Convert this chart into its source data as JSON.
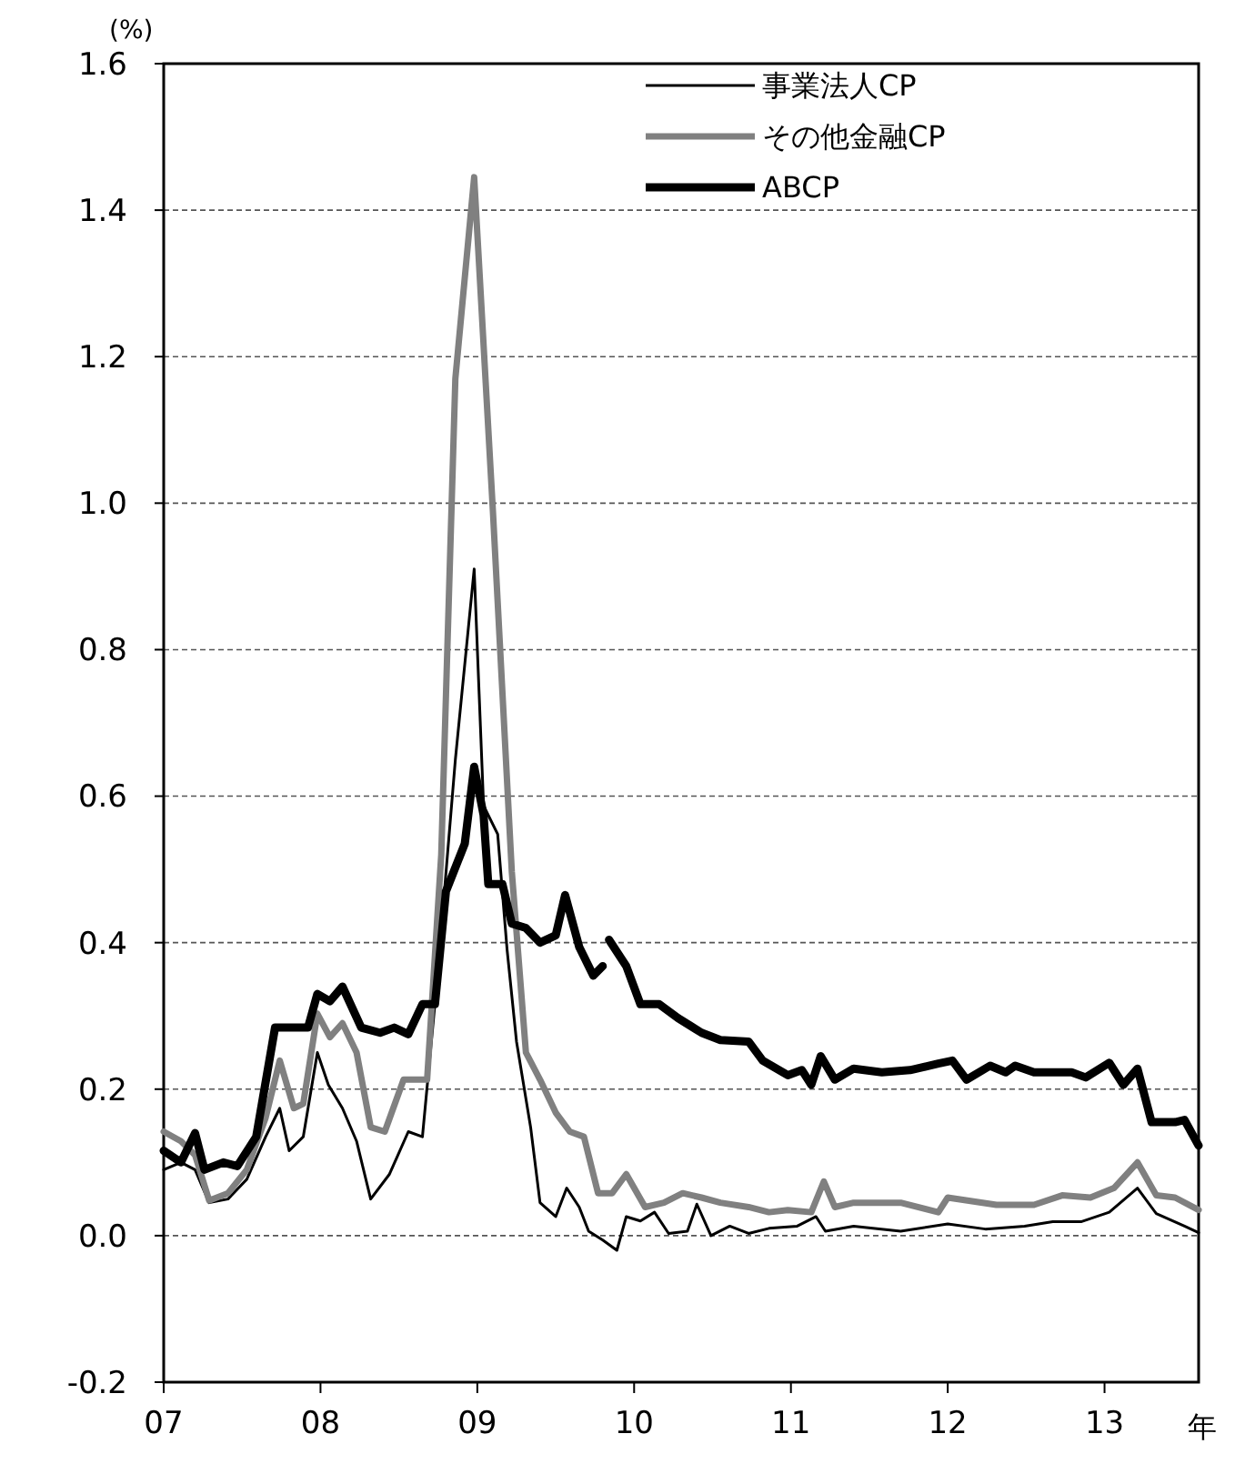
{
  "chart_data": {
    "type": "line",
    "ylabel": "(%)",
    "xlabel": "年",
    "xlim": [
      7,
      13.6
    ],
    "xticks": [
      {
        "value": 7,
        "label": "07"
      },
      {
        "value": 8,
        "label": "08"
      },
      {
        "value": 9,
        "label": "09"
      },
      {
        "value": 10,
        "label": "10"
      },
      {
        "value": 11,
        "label": "11"
      },
      {
        "value": 12,
        "label": "12"
      },
      {
        "value": 13,
        "label": "13"
      }
    ],
    "ylim": [
      -0.2,
      1.6
    ],
    "yticks": [
      {
        "value": -0.2,
        "label": "-0.2"
      },
      {
        "value": 0,
        "label": "0.0"
      },
      {
        "value": 0.2,
        "label": "0.2"
      },
      {
        "value": 0.4,
        "label": "0.4"
      },
      {
        "value": 0.6,
        "label": "0.6"
      },
      {
        "value": 0.8,
        "label": "0.8"
      },
      {
        "value": 1,
        "label": "1.0"
      },
      {
        "value": 1.2,
        "label": "1.2"
      },
      {
        "value": 1.4,
        "label": "1.4"
      },
      {
        "value": 1.6,
        "label": "1.6"
      }
    ],
    "grid": "y",
    "legend": "top right",
    "line_style": "solid",
    "marker": "none",
    "series": [
      {
        "name": "事業法人CP",
        "color": "#000000",
        "x": [
          7.0,
          7.11,
          7.2,
          7.29,
          7.41,
          7.53,
          7.65,
          7.74,
          7.8,
          7.89,
          7.98,
          8.05,
          8.14,
          8.23,
          8.32,
          8.44,
          8.56,
          8.65,
          8.74,
          8.86,
          8.98,
          9.04,
          9.13,
          9.19,
          9.25,
          9.34,
          9.4,
          9.5,
          9.57,
          9.65,
          9.71,
          9.8,
          9.89,
          9.95,
          10.04,
          10.13,
          10.22,
          10.34,
          10.4,
          10.49,
          10.61,
          10.73,
          10.86,
          11.04,
          11.16,
          11.22,
          11.4,
          11.7,
          12.0,
          12.24,
          12.49,
          12.67,
          12.85,
          13.03,
          13.21,
          13.33,
          13.51,
          13.6
        ],
        "values": [
          0.09,
          0.1,
          0.09,
          0.045,
          0.05,
          0.077,
          0.135,
          0.174,
          0.116,
          0.135,
          0.25,
          0.206,
          0.174,
          0.129,
          0.05,
          0.084,
          0.142,
          0.135,
          0.34,
          0.65,
          0.91,
          0.587,
          0.548,
          0.39,
          0.265,
          0.148,
          0.045,
          0.026,
          0.065,
          0.039,
          0.006,
          -0.006,
          -0.02,
          0.026,
          0.02,
          0.032,
          0.003,
          0.006,
          0.043,
          0.0,
          0.013,
          0.003,
          0.01,
          0.013,
          0.026,
          0.006,
          0.013,
          0.006,
          0.016,
          0.009,
          0.013,
          0.019,
          0.019,
          0.032,
          0.065,
          0.03,
          0.013,
          0.004
        ]
      },
      {
        "name": "その他金融CP",
        "color": "#808080",
        "x": [
          7.0,
          7.11,
          7.2,
          7.29,
          7.41,
          7.53,
          7.65,
          7.74,
          7.83,
          7.89,
          7.98,
          8.06,
          8.14,
          8.23,
          8.32,
          8.41,
          8.53,
          8.68,
          8.77,
          8.86,
          8.98,
          9.1,
          9.22,
          9.31,
          9.4,
          9.5,
          9.59,
          9.68,
          9.77,
          9.86,
          9.95,
          10.07,
          10.19,
          10.31,
          10.43,
          10.55,
          10.73,
          10.86,
          10.98,
          11.13,
          11.21,
          11.28,
          11.4,
          11.7,
          11.94,
          12.0,
          12.31,
          12.55,
          12.73,
          12.91,
          13.06,
          13.21,
          13.33,
          13.45,
          13.6
        ],
        "values": [
          0.142,
          0.129,
          0.11,
          0.048,
          0.058,
          0.09,
          0.161,
          0.239,
          0.174,
          0.18,
          0.303,
          0.271,
          0.29,
          0.25,
          0.148,
          0.142,
          0.213,
          0.213,
          0.52,
          1.17,
          1.445,
          0.987,
          0.497,
          0.25,
          0.213,
          0.168,
          0.142,
          0.135,
          0.058,
          0.058,
          0.084,
          0.039,
          0.045,
          0.058,
          0.052,
          0.045,
          0.039,
          0.032,
          0.035,
          0.032,
          0.074,
          0.039,
          0.045,
          0.045,
          0.032,
          0.052,
          0.042,
          0.042,
          0.055,
          0.052,
          0.065,
          0.1,
          0.055,
          0.052,
          0.035
        ]
      },
      {
        "name": "ABCP",
        "color": "#000000",
        "x": [
          7.0,
          7.11,
          7.2,
          7.26,
          7.38,
          7.47,
          7.59,
          7.71,
          7.83,
          7.92,
          7.98,
          8.06,
          8.14,
          8.26,
          8.38,
          8.47,
          8.56,
          8.65,
          8.73,
          8.8,
          8.92,
          8.98,
          9.04,
          9.07,
          9.16,
          9.22,
          9.31,
          9.4,
          9.5,
          9.56,
          9.65,
          9.74,
          9.8,
          9.82,
          9.84,
          9.95,
          10.04,
          10.16,
          10.28,
          10.43,
          10.55,
          10.73,
          10.82,
          10.98,
          11.07,
          11.13,
          11.19,
          11.28,
          11.4,
          11.58,
          11.76,
          11.94,
          12.03,
          12.12,
          12.27,
          12.37,
          12.43,
          12.55,
          12.79,
          12.88,
          13.03,
          13.12,
          13.21,
          13.3,
          13.45,
          13.51,
          13.6
        ],
        "values": [
          0.116,
          0.1,
          0.14,
          0.09,
          0.1,
          0.095,
          0.135,
          0.284,
          0.284,
          0.284,
          0.33,
          0.32,
          0.34,
          0.284,
          0.277,
          0.284,
          0.275,
          0.316,
          0.316,
          0.47,
          0.535,
          0.64,
          0.574,
          0.48,
          0.48,
          0.426,
          0.42,
          0.4,
          0.41,
          0.465,
          0.394,
          0.355,
          0.368,
          null,
          0.404,
          0.368,
          0.316,
          0.316,
          0.297,
          0.277,
          0.267,
          0.265,
          0.239,
          0.219,
          0.226,
          0.206,
          0.245,
          0.213,
          0.228,
          0.223,
          0.226,
          0.235,
          0.239,
          0.213,
          0.232,
          0.223,
          0.232,
          0.223,
          0.223,
          0.216,
          0.236,
          0.206,
          0.228,
          0.155,
          0.155,
          0.158,
          0.123
        ]
      }
    ]
  }
}
